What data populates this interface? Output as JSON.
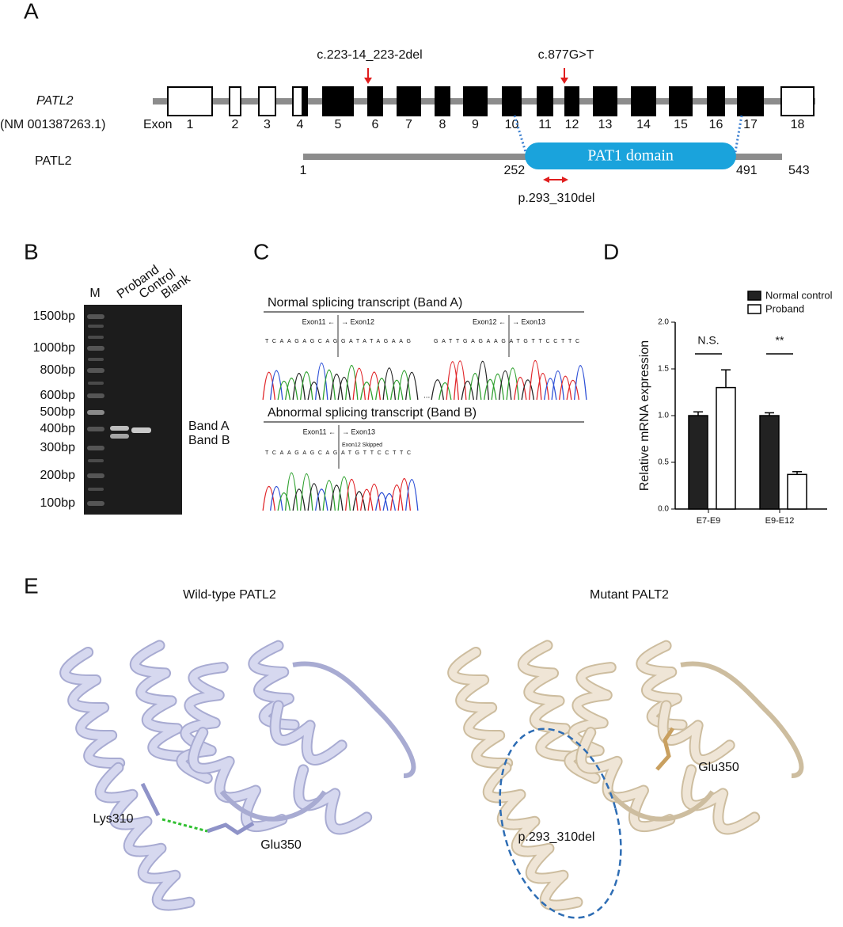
{
  "panel_a": {
    "label": "A",
    "gene": "PATL2",
    "accession": "(NM 001387263.1)",
    "exon_label": "Exon",
    "exons": [
      "1",
      "2",
      "3",
      "4",
      "5",
      "6",
      "7",
      "8",
      "9",
      "10",
      "11",
      "12",
      "13",
      "14",
      "15",
      "16",
      "17",
      "18"
    ],
    "variants": [
      "c.223-14_223-2del",
      "c.877G>T"
    ],
    "protein": "PATL2",
    "domain": "PAT1 domain",
    "positions": [
      1,
      252,
      491,
      543
    ],
    "deletion": "p.293_310del"
  },
  "panel_b": {
    "label": "B",
    "lanes": [
      "M",
      "Proband",
      "Control",
      "Blank"
    ],
    "ladder": [
      "1500bp",
      "1000bp",
      "800bp",
      "600bp",
      "500bp",
      "400bp",
      "300bp",
      "200bp",
      "100bp"
    ],
    "bands": [
      "Band A",
      "Band B"
    ]
  },
  "panel_c": {
    "label": "C",
    "normal": {
      "title": "Normal splicing transcript (Band A)",
      "junctions": [
        {
          "left": "Exon11 ←",
          "right": "→ Exon12",
          "sequence": "TCAAGAGCAGGATATAGAAG"
        },
        {
          "left": "Exon12 ←",
          "right": "→ Exon13",
          "sequence": "GATTGAGAAGATGTTCCTTC"
        }
      ]
    },
    "ellipsis": "...",
    "abnormal": {
      "title": "Abnormal splicing transcript (Band B)",
      "junctions": [
        {
          "left": "Exon11 ←",
          "right": "→ Exon13",
          "note": "Exon12 Skipped",
          "sequence": "TCAAGAGCAGATGTTCCTTC"
        }
      ]
    }
  },
  "chart_data": {
    "type": "bar",
    "label": "D",
    "ylabel": "Relative mRNA expression",
    "categories": [
      "E7-E9",
      "E9-E12"
    ],
    "series": [
      {
        "name": "Normal control",
        "color": "#222222",
        "values": [
          1.0,
          1.0
        ],
        "errors": [
          0.04,
          0.03
        ]
      },
      {
        "name": "Proband",
        "color": "#ffffff",
        "values": [
          1.3,
          0.37
        ],
        "errors": [
          0.19,
          0.03
        ]
      }
    ],
    "ylim": [
      0,
      2
    ],
    "yticks": [
      {
        "value": 0,
        "label": "0.0"
      },
      {
        "value": 0.5,
        "label": "0.5"
      },
      {
        "value": 1,
        "label": "1.0"
      },
      {
        "value": 1.5,
        "label": "1.5"
      },
      {
        "value": 2,
        "label": "2.0"
      }
    ],
    "annotations": [
      "N.S.",
      "**"
    ],
    "legend": "upper right"
  },
  "panel_e": {
    "label": "E",
    "panels": [
      {
        "title": "Wild-type PATL2",
        "labels": [
          "Lys310",
          "Glu350"
        ]
      },
      {
        "title": "Mutant PALT2",
        "labels": [
          "Glu350",
          "p.293_310del"
        ]
      }
    ]
  }
}
